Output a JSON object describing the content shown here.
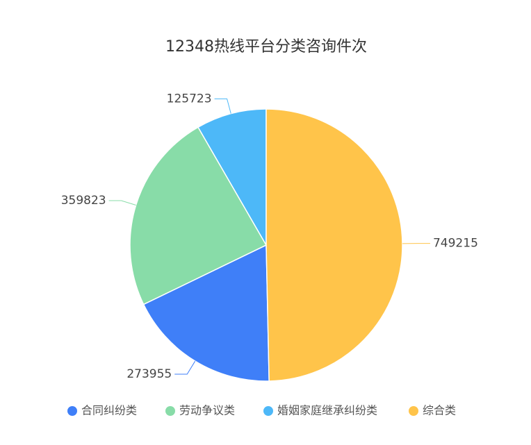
{
  "chart_data": {
    "type": "pie",
    "title": "12348热线平台分类咨询件次",
    "categories": [
      "合同纠纷类",
      "劳动争议类",
      "婚姻家庭继承纠纷类",
      "综合类"
    ],
    "values": [
      273955,
      359823,
      125723,
      749215
    ],
    "colors": [
      "#3f7ff8",
      "#88dca8",
      "#4db8f8",
      "#ffc44a"
    ],
    "legend": "bottom"
  }
}
